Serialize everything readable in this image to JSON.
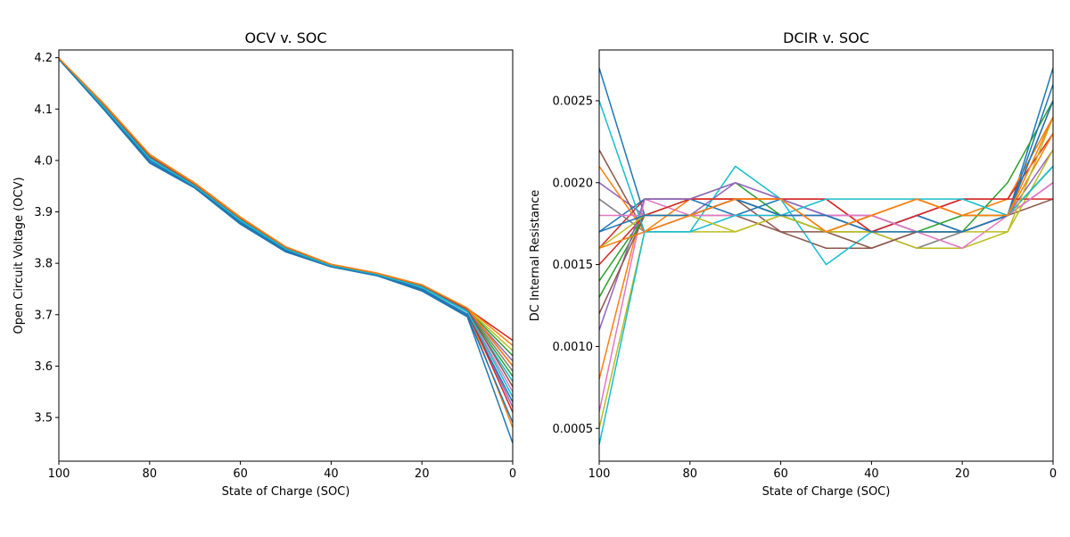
{
  "chart_data": [
    {
      "type": "line",
      "title": "OCV v. SOC",
      "xlabel": "State of Charge (SOC)",
      "ylabel": "Open Circuit Voltage (OCV)",
      "xlim": [
        100,
        0
      ],
      "ylim": [
        3.415,
        4.215
      ],
      "xticks": [
        100,
        80,
        60,
        40,
        20,
        0
      ],
      "xtick_labels": [
        "100",
        "80",
        "60",
        "40",
        "20",
        "0"
      ],
      "yticks": [
        3.5,
        3.6,
        3.7,
        3.8,
        3.9,
        4.0,
        4.1,
        4.2
      ],
      "ytick_labels": [
        "3.5",
        "3.6",
        "3.7",
        "3.8",
        "3.9",
        "4.0",
        "4.1",
        "4.2"
      ],
      "x": [
        100,
        90,
        80,
        70,
        60,
        50,
        40,
        30,
        20,
        10,
        0
      ],
      "grid": false,
      "series": [
        {
          "color": "#1f77b4",
          "values": [
            4.197,
            4.098,
            3.995,
            3.946,
            3.876,
            3.822,
            3.793,
            3.776,
            3.746,
            3.696,
            3.45
          ]
        },
        {
          "color": "#ff7f0e",
          "values": [
            4.198,
            4.104,
            4.005,
            3.951,
            3.885,
            3.829,
            3.796,
            3.779,
            3.755,
            3.708,
            3.48
          ]
        },
        {
          "color": "#2ca02c",
          "values": [
            4.198,
            4.106,
            4.008,
            3.953,
            3.887,
            3.83,
            3.797,
            3.78,
            3.757,
            3.71,
            3.62
          ]
        },
        {
          "color": "#d62728",
          "values": [
            4.199,
            4.109,
            4.011,
            3.955,
            3.889,
            3.832,
            3.798,
            3.781,
            3.758,
            3.712,
            3.65
          ]
        },
        {
          "color": "#9467bd",
          "values": [
            4.198,
            4.105,
            4.006,
            3.952,
            3.886,
            3.829,
            3.796,
            3.779,
            3.756,
            3.708,
            3.52
          ]
        },
        {
          "color": "#8c564b",
          "values": [
            4.198,
            4.107,
            4.009,
            3.954,
            3.888,
            3.831,
            3.797,
            3.78,
            3.757,
            3.711,
            3.6
          ]
        },
        {
          "color": "#e377c2",
          "values": [
            4.198,
            4.104,
            4.004,
            3.95,
            3.884,
            3.828,
            3.795,
            3.778,
            3.754,
            3.706,
            3.55
          ]
        },
        {
          "color": "#7f7f7f",
          "values": [
            4.198,
            4.106,
            4.007,
            3.952,
            3.886,
            3.83,
            3.796,
            3.779,
            3.756,
            3.709,
            3.59
          ]
        },
        {
          "color": "#bcbd22",
          "values": [
            4.199,
            4.108,
            4.01,
            3.954,
            3.888,
            3.831,
            3.797,
            3.78,
            3.757,
            3.711,
            3.63
          ]
        },
        {
          "color": "#17becf",
          "values": [
            4.198,
            4.103,
            4.003,
            3.95,
            3.883,
            3.827,
            3.795,
            3.778,
            3.753,
            3.705,
            3.57
          ]
        },
        {
          "color": "#1f77b4",
          "values": [
            4.197,
            4.101,
            4.0,
            3.948,
            3.88,
            3.825,
            3.794,
            3.777,
            3.75,
            3.701,
            3.53
          ]
        },
        {
          "color": "#ff7f0e",
          "values": [
            4.199,
            4.11,
            4.012,
            3.956,
            3.89,
            3.832,
            3.798,
            3.781,
            3.758,
            3.713,
            3.64
          ]
        },
        {
          "color": "#2ca02c",
          "values": [
            4.198,
            4.105,
            4.006,
            3.951,
            3.885,
            3.829,
            3.796,
            3.779,
            3.755,
            3.707,
            3.58
          ]
        },
        {
          "color": "#d62728",
          "values": [
            4.198,
            4.104,
            4.005,
            3.951,
            3.885,
            3.828,
            3.795,
            3.778,
            3.754,
            3.707,
            3.51
          ]
        },
        {
          "color": "#9467bd",
          "values": [
            4.198,
            4.106,
            4.007,
            3.952,
            3.886,
            3.83,
            3.796,
            3.779,
            3.756,
            3.709,
            3.61
          ]
        },
        {
          "color": "#8c564b",
          "values": [
            4.198,
            4.107,
            4.008,
            3.953,
            3.887,
            3.83,
            3.797,
            3.78,
            3.756,
            3.71,
            3.56
          ]
        },
        {
          "color": "#17becf",
          "values": [
            4.198,
            4.103,
            4.004,
            3.95,
            3.884,
            3.828,
            3.795,
            3.778,
            3.754,
            3.706,
            3.54
          ]
        },
        {
          "color": "#1f77b4",
          "values": [
            4.197,
            4.099,
            3.997,
            3.947,
            3.878,
            3.823,
            3.793,
            3.776,
            3.748,
            3.698,
            3.49
          ]
        },
        {
          "color": "#ff7f0e",
          "values": [
            4.199,
            4.109,
            4.012,
            3.955,
            3.889,
            3.832,
            3.798,
            3.781,
            3.758,
            3.713,
            3.6
          ]
        }
      ]
    },
    {
      "type": "line",
      "title": "DCIR v. SOC",
      "xlabel": "State of Charge (SOC)",
      "ylabel": "DC Internal Resistance",
      "xlim": [
        100,
        0
      ],
      "ylim": [
        0.0003,
        0.00281
      ],
      "xticks": [
        100,
        80,
        60,
        40,
        20,
        0
      ],
      "xtick_labels": [
        "100",
        "80",
        "60",
        "40",
        "20",
        "0"
      ],
      "yticks": [
        0.0005,
        0.001,
        0.0015,
        0.002,
        0.0025
      ],
      "ytick_labels": [
        "0.0005",
        "0.0010",
        "0.0015",
        "0.0020",
        "0.0025"
      ],
      "x": [
        100,
        90,
        80,
        70,
        60,
        50,
        40,
        30,
        20,
        10,
        0
      ],
      "grid": false,
      "series": [
        {
          "color": "#1f77b4",
          "values": [
            0.0027,
            0.0018,
            0.0018,
            0.0019,
            0.0018,
            0.0018,
            0.0017,
            0.0018,
            0.0017,
            0.0018,
            0.0027
          ]
        },
        {
          "color": "#ff7f0e",
          "values": [
            0.0008,
            0.0019,
            0.0019,
            0.0019,
            0.0019,
            0.0017,
            0.0018,
            0.0019,
            0.0018,
            0.0019,
            0.0024
          ]
        },
        {
          "color": "#2ca02c",
          "values": [
            0.0014,
            0.0018,
            0.0019,
            0.002,
            0.0018,
            0.0017,
            0.0018,
            0.0017,
            0.0017,
            0.002,
            0.0025
          ]
        },
        {
          "color": "#d62728",
          "values": [
            0.0016,
            0.0019,
            0.0019,
            0.0019,
            0.0019,
            0.0019,
            0.0017,
            0.0018,
            0.0019,
            0.0019,
            0.0023
          ]
        },
        {
          "color": "#9467bd",
          "values": [
            0.002,
            0.0018,
            0.0018,
            0.002,
            0.0019,
            0.0018,
            0.0017,
            0.0018,
            0.0017,
            0.0018,
            0.0022
          ]
        },
        {
          "color": "#8c564b",
          "values": [
            0.0022,
            0.0017,
            0.0018,
            0.0018,
            0.0017,
            0.0016,
            0.0016,
            0.0017,
            0.0017,
            0.0018,
            0.0019
          ]
        },
        {
          "color": "#e377c2",
          "values": [
            0.0006,
            0.0019,
            0.0018,
            0.0019,
            0.0018,
            0.0018,
            0.0018,
            0.0017,
            0.0017,
            0.0018,
            0.002
          ]
        },
        {
          "color": "#7f7f7f",
          "values": [
            0.0019,
            0.0017,
            0.0018,
            0.0019,
            0.0018,
            0.0017,
            0.0017,
            0.0016,
            0.0017,
            0.0018,
            0.0021
          ]
        },
        {
          "color": "#bcbd22",
          "values": [
            0.0005,
            0.0017,
            0.0017,
            0.0017,
            0.0018,
            0.0017,
            0.0017,
            0.0016,
            0.0016,
            0.0017,
            0.0022
          ]
        },
        {
          "color": "#17becf",
          "values": [
            0.0004,
            0.0017,
            0.0017,
            0.0021,
            0.0019,
            0.0015,
            0.0017,
            0.0017,
            0.0017,
            0.0018,
            0.0021
          ]
        },
        {
          "color": "#1f77b4",
          "values": [
            0.0017,
            0.0019,
            0.0019,
            0.0018,
            0.0019,
            0.0018,
            0.0017,
            0.0018,
            0.0017,
            0.0018,
            0.0026
          ]
        },
        {
          "color": "#ff7f0e",
          "values": [
            0.0021,
            0.0017,
            0.0019,
            0.0019,
            0.0019,
            0.0017,
            0.0018,
            0.0019,
            0.0018,
            0.0018,
            0.0023
          ]
        },
        {
          "color": "#2ca02c",
          "values": [
            0.0013,
            0.0018,
            0.0018,
            0.0019,
            0.0018,
            0.0017,
            0.0018,
            0.0017,
            0.0018,
            0.0018,
            0.0021
          ]
        },
        {
          "color": "#d62728",
          "values": [
            0.0015,
            0.0018,
            0.0019,
            0.0019,
            0.0019,
            0.0019,
            0.0017,
            0.0018,
            0.0019,
            0.0019,
            0.0019
          ]
        },
        {
          "color": "#9467bd",
          "values": [
            0.0011,
            0.0019,
            0.0019,
            0.002,
            0.0019,
            0.0018,
            0.0018,
            0.0017,
            0.0017,
            0.0018,
            0.002
          ]
        },
        {
          "color": "#8c564b",
          "values": [
            0.0012,
            0.0018,
            0.0018,
            0.0019,
            0.0017,
            0.0017,
            0.0016,
            0.0017,
            0.0017,
            0.0018,
            0.0025
          ]
        },
        {
          "color": "#e377c2",
          "values": [
            0.0018,
            0.0018,
            0.0018,
            0.0018,
            0.0018,
            0.0018,
            0.0018,
            0.0017,
            0.0016,
            0.0018,
            0.002
          ]
        },
        {
          "color": "#17becf",
          "values": [
            0.0025,
            0.0017,
            0.0017,
            0.0018,
            0.0018,
            0.0019,
            0.0019,
            0.0019,
            0.0019,
            0.0018,
            0.0021
          ]
        },
        {
          "color": "#bcbd22",
          "values": [
            0.0016,
            0.0018,
            0.0018,
            0.0017,
            0.0018,
            0.0017,
            0.0017,
            0.0017,
            0.0017,
            0.0017,
            0.0024
          ]
        },
        {
          "color": "#1f77b4",
          "values": [
            0.0017,
            0.0018,
            0.0018,
            0.0019,
            0.0018,
            0.0018,
            0.0017,
            0.0017,
            0.0017,
            0.0018,
            0.0025
          ]
        },
        {
          "color": "#ff7f0e",
          "values": [
            0.0016,
            0.0017,
            0.0018,
            0.0019,
            0.0019,
            0.0017,
            0.0018,
            0.0019,
            0.0018,
            0.0018,
            0.0024
          ]
        }
      ]
    }
  ]
}
